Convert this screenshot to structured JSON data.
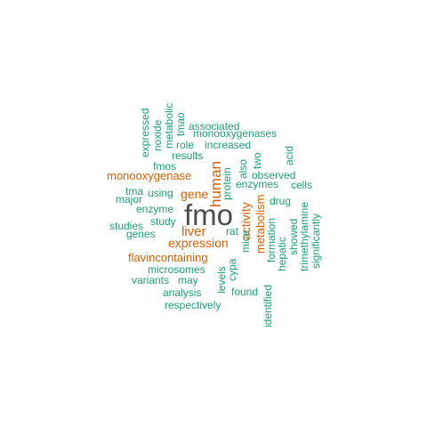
{
  "colors": {
    "big": "#4d4d4d",
    "orange": "#d95f02",
    "green": "#1b9e77"
  },
  "words": [
    {
      "text": "fmo",
      "color": "big"
    },
    {
      "text": "human",
      "color": "orange"
    },
    {
      "text": "liver",
      "color": "orange"
    },
    {
      "text": "expression",
      "color": "orange"
    },
    {
      "text": "gene",
      "color": "orange"
    },
    {
      "text": "monooxygenase",
      "color": "orange"
    },
    {
      "text": "flavincontaining",
      "color": "orange"
    },
    {
      "text": "activity",
      "color": "orange"
    },
    {
      "text": "metabolism",
      "color": "orange"
    },
    {
      "text": "expressed",
      "color": "green"
    },
    {
      "text": "noxide",
      "color": "green"
    },
    {
      "text": "metabolic",
      "color": "green"
    },
    {
      "text": "tmao",
      "color": "green"
    },
    {
      "text": "associated",
      "color": "green"
    },
    {
      "text": "monooxygenases",
      "color": "green"
    },
    {
      "text": "role",
      "color": "green"
    },
    {
      "text": "increased",
      "color": "green"
    },
    {
      "text": "results",
      "color": "green"
    },
    {
      "text": "acid",
      "color": "green"
    },
    {
      "text": "fmos",
      "color": "green"
    },
    {
      "text": "also",
      "color": "green"
    },
    {
      "text": "two",
      "color": "green"
    },
    {
      "text": "observed",
      "color": "green"
    },
    {
      "text": "protein",
      "color": "green"
    },
    {
      "text": "enzymes",
      "color": "green"
    },
    {
      "text": "cells",
      "color": "green"
    },
    {
      "text": "tma",
      "color": "green"
    },
    {
      "text": "using",
      "color": "green"
    },
    {
      "text": "major",
      "color": "green"
    },
    {
      "text": "drug",
      "color": "green"
    },
    {
      "text": "enzyme",
      "color": "green"
    },
    {
      "text": "study",
      "color": "green"
    },
    {
      "text": "studies",
      "color": "green"
    },
    {
      "text": "genes",
      "color": "green"
    },
    {
      "text": "rat",
      "color": "green"
    },
    {
      "text": "formation",
      "color": "green"
    },
    {
      "text": "showed",
      "color": "green"
    },
    {
      "text": "trimethylamine",
      "color": "green"
    },
    {
      "text": "significantly",
      "color": "green"
    },
    {
      "text": "hepatic",
      "color": "green"
    },
    {
      "text": "mice",
      "color": "green"
    },
    {
      "text": "cypa",
      "color": "green"
    },
    {
      "text": "levels",
      "color": "green"
    },
    {
      "text": "microsomes",
      "color": "green"
    },
    {
      "text": "variants",
      "color": "green"
    },
    {
      "text": "may",
      "color": "green"
    },
    {
      "text": "analysis",
      "color": "green"
    },
    {
      "text": "found",
      "color": "green"
    },
    {
      "text": "respectively",
      "color": "green"
    },
    {
      "text": "identified",
      "color": "green"
    }
  ]
}
